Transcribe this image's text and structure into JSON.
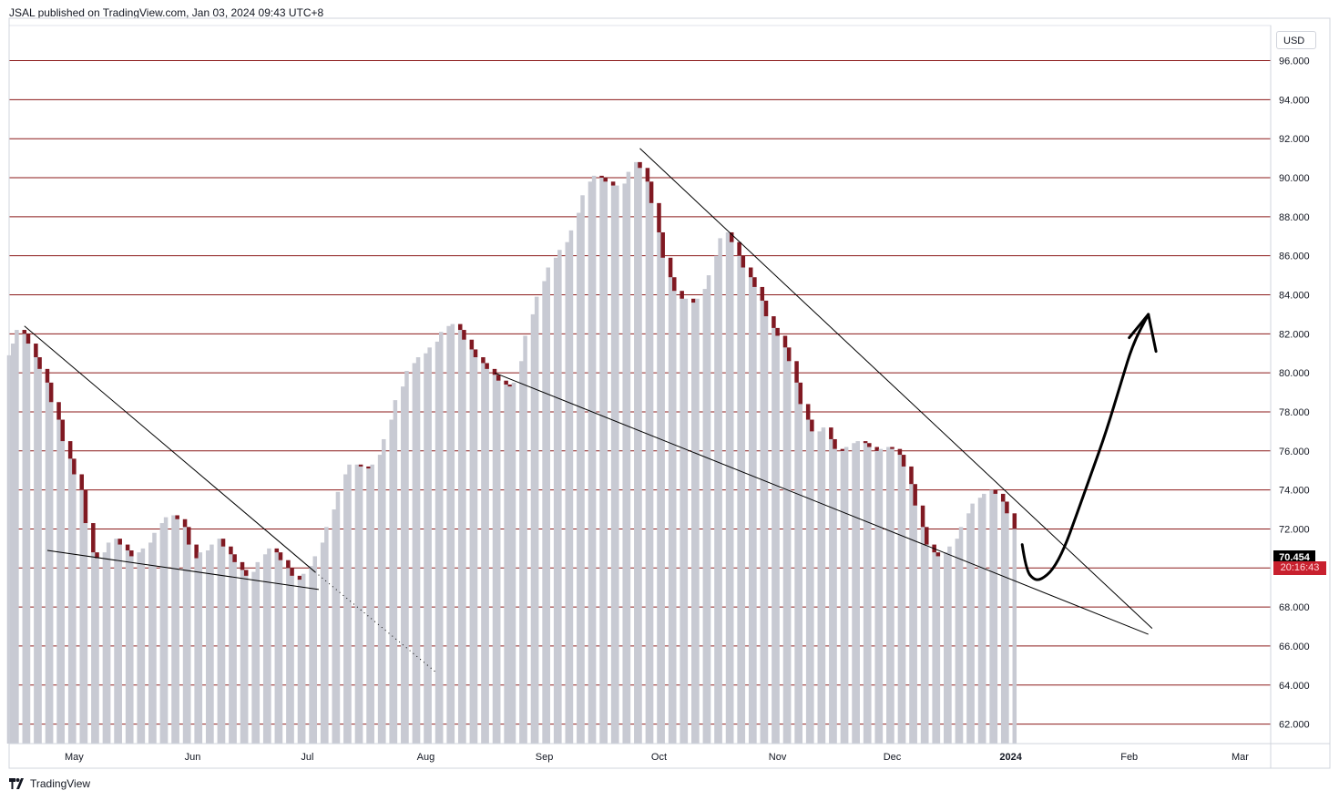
{
  "header": {
    "publisher_line": "JSAL published on TradingView.com, Jan 03, 2024 09:43 UTC+8"
  },
  "footer": {
    "brand": "TradingView",
    "logo_icon": "tradingview-logo-icon"
  },
  "currency": "USD",
  "last_price_label": "70.454",
  "countdown_label": "20:16:43",
  "colors": {
    "grid": "#8b1a1a",
    "bar_up": "#c8cad3",
    "bar_down": "#801922",
    "trendline": "#000000",
    "axis_text": "#131722"
  },
  "chart_data": {
    "type": "bar",
    "title": "",
    "xlabel": "",
    "ylabel": "",
    "ylim": [
      61.0,
      97.8
    ],
    "grid": true,
    "price_axis_labels": [
      "96.000",
      "94.000",
      "92.000",
      "90.000",
      "88.000",
      "86.000",
      "84.000",
      "82.000",
      "80.000",
      "78.000",
      "76.000",
      "74.000",
      "72.000",
      "70.000",
      "68.000",
      "66.000",
      "64.000",
      "62.000"
    ],
    "time_axis_labels": [
      {
        "label": "May",
        "date": "2023-05-01"
      },
      {
        "label": "Jun",
        "date": "2023-06-01"
      },
      {
        "label": "Jul",
        "date": "2023-07-01"
      },
      {
        "label": "Aug",
        "date": "2023-08-01"
      },
      {
        "label": "Sep",
        "date": "2023-09-01"
      },
      {
        "label": "Oct",
        "date": "2023-10-01"
      },
      {
        "label": "Nov",
        "date": "2023-11-01"
      },
      {
        "label": "Dec",
        "date": "2023-12-01"
      },
      {
        "label": "2024",
        "date": "2024-01-01"
      },
      {
        "label": "Feb",
        "date": "2024-02-01"
      },
      {
        "label": "Mar",
        "date": "2024-03-01"
      }
    ],
    "x_range": [
      "2023-04-14",
      "2024-03-09"
    ],
    "last_price": 70.454,
    "series": [
      {
        "start_date": "2023-04-14",
        "end_date": "2024-01-02",
        "closes": [
          80.9,
          81.5,
          82.2,
          82.0,
          81.5,
          80.8,
          80.2,
          79.5,
          78.5,
          77.6,
          76.5,
          75.6,
          74.8,
          74.0,
          72.3,
          70.8,
          70.5,
          70.8,
          71.3,
          71.5,
          71.2,
          70.9,
          70.6,
          70.8,
          71.0,
          71.3,
          71.8,
          72.3,
          72.6,
          72.7,
          72.5,
          72.1,
          71.2,
          70.5,
          70.8,
          70.9,
          71.2,
          71.5,
          71.1,
          70.7,
          70.3,
          69.9,
          69.6,
          69.8,
          70.3,
          70.7,
          71.0,
          70.8,
          70.4,
          70.0,
          69.6,
          69.4,
          69.7,
          70.1,
          70.6,
          71.3,
          72.1,
          73.0,
          73.9,
          74.8,
          75.3,
          75.3,
          75.2,
          75.1,
          75.3,
          75.8,
          76.6,
          77.6,
          78.6,
          79.3,
          80.1,
          80.5,
          80.8,
          81.0,
          81.3,
          81.6,
          82.1,
          82.4,
          82.5,
          82.2,
          81.7,
          81.2,
          80.8,
          80.5,
          80.2,
          79.9,
          79.6,
          79.4,
          79.3,
          79.5,
          80.6,
          81.9,
          83.0,
          83.9,
          84.7,
          85.4,
          85.9,
          86.3,
          86.7,
          87.3,
          88.2,
          89.1,
          89.8,
          90.1,
          90.0,
          89.8,
          89.6,
          89.6,
          89.7,
          90.3,
          90.8,
          90.5,
          89.8,
          88.7,
          87.2,
          85.9,
          84.9,
          84.2,
          83.8,
          83.8,
          83.6,
          83.8,
          84.3,
          85.0,
          86.0,
          86.9,
          87.2,
          86.7,
          86.0,
          85.4,
          84.9,
          84.4,
          83.7,
          82.9,
          82.3,
          81.9,
          81.3,
          80.6,
          79.5,
          78.4,
          77.6,
          77.0,
          77.0,
          77.2,
          76.6,
          76.1,
          76.0,
          76.2,
          76.4,
          76.5,
          76.4,
          76.2,
          76.0,
          76.1,
          76.2,
          76.1,
          75.8,
          75.2,
          74.3,
          73.2,
          72.1,
          71.2,
          70.8,
          70.6,
          70.8,
          71.1,
          71.5,
          72.1,
          72.8,
          73.3,
          73.6,
          73.8,
          74.0,
          73.8,
          73.4,
          72.8,
          72.0
        ]
      }
    ],
    "annotations": [
      {
        "type": "trendline",
        "from": [
          "2023-04-18",
          82.4
        ],
        "to": [
          "2023-07-03",
          69.8
        ]
      },
      {
        "type": "trendline_dotted",
        "from": [
          "2023-07-03",
          69.8
        ],
        "to": [
          "2023-08-04",
          64.6
        ]
      },
      {
        "type": "trendline",
        "from": [
          "2023-04-24",
          70.9
        ],
        "to": [
          "2023-07-04",
          68.9
        ]
      },
      {
        "type": "trendline",
        "from": [
          "2023-08-19",
          80.0
        ],
        "to": [
          "2024-02-06",
          66.6
        ]
      },
      {
        "type": "trendline",
        "from": [
          "2023-09-26",
          91.5
        ],
        "to": [
          "2024-02-07",
          66.9
        ]
      },
      {
        "type": "freehand_arrow",
        "points": [
          [
            "2024-01-04",
            71.2
          ],
          [
            "2024-01-05",
            69.9
          ],
          [
            "2024-01-07",
            69.4
          ],
          [
            "2024-01-09",
            69.4
          ],
          [
            "2024-01-12",
            69.9
          ],
          [
            "2024-01-15",
            71.0
          ],
          [
            "2024-01-18",
            72.6
          ],
          [
            "2024-01-22",
            74.8
          ],
          [
            "2024-01-26",
            77.0
          ],
          [
            "2024-01-30",
            79.6
          ],
          [
            "2024-02-02",
            81.5
          ],
          [
            "2024-02-06",
            83.0
          ]
        ],
        "head": [
          [
            "2024-02-01",
            81.8
          ],
          [
            "2024-02-06",
            83.0
          ],
          [
            "2024-02-08",
            81.1
          ]
        ]
      }
    ]
  }
}
